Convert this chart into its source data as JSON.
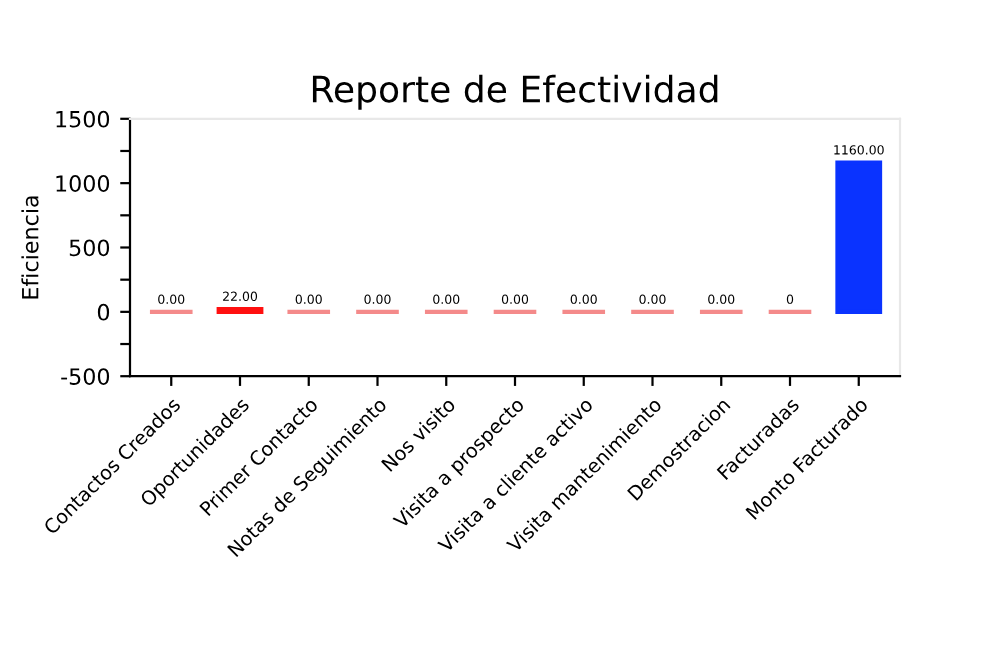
{
  "chart_data": {
    "type": "bar",
    "title": "Reporte de Efectividad",
    "ylabel": "Eficiencia",
    "categories": [
      "Contactos Creados",
      "Oportunidades",
      "Primer Contacto",
      "Notas de Seguimiento",
      "Nos visito",
      "Visita a prospecto",
      "Visita a cliente activo",
      "Visita mantenimiento",
      "Demostracion",
      "Facturadas",
      "Monto Facturado"
    ],
    "values": [
      0,
      22,
      0,
      0,
      0,
      0,
      0,
      0,
      0,
      0,
      1160
    ],
    "colors": [
      "#f48a8a",
      "#ff1010",
      "#f48a8a",
      "#f48a8a",
      "#f48a8a",
      "#f48a8a",
      "#f48a8a",
      "#f48a8a",
      "#f48a8a",
      "#f48a8a",
      "#0a33ff"
    ],
    "value_labels": [
      "0.00",
      "22.00",
      "0.00",
      "0.00",
      "0.00",
      "0.00",
      "0.00",
      "0.00",
      "0.00",
      "0",
      "1160.00"
    ],
    "ylim": [
      -500,
      1500
    ],
    "yticks": [
      -500,
      {
        "value": -250,
        "label": null
      },
      0,
      {
        "value": 250,
        "label": null
      },
      500,
      {
        "value": 750,
        "label": null
      },
      1000,
      {
        "value": 1250,
        "label": null
      },
      1500
    ],
    "grid": false,
    "legend": false
  }
}
